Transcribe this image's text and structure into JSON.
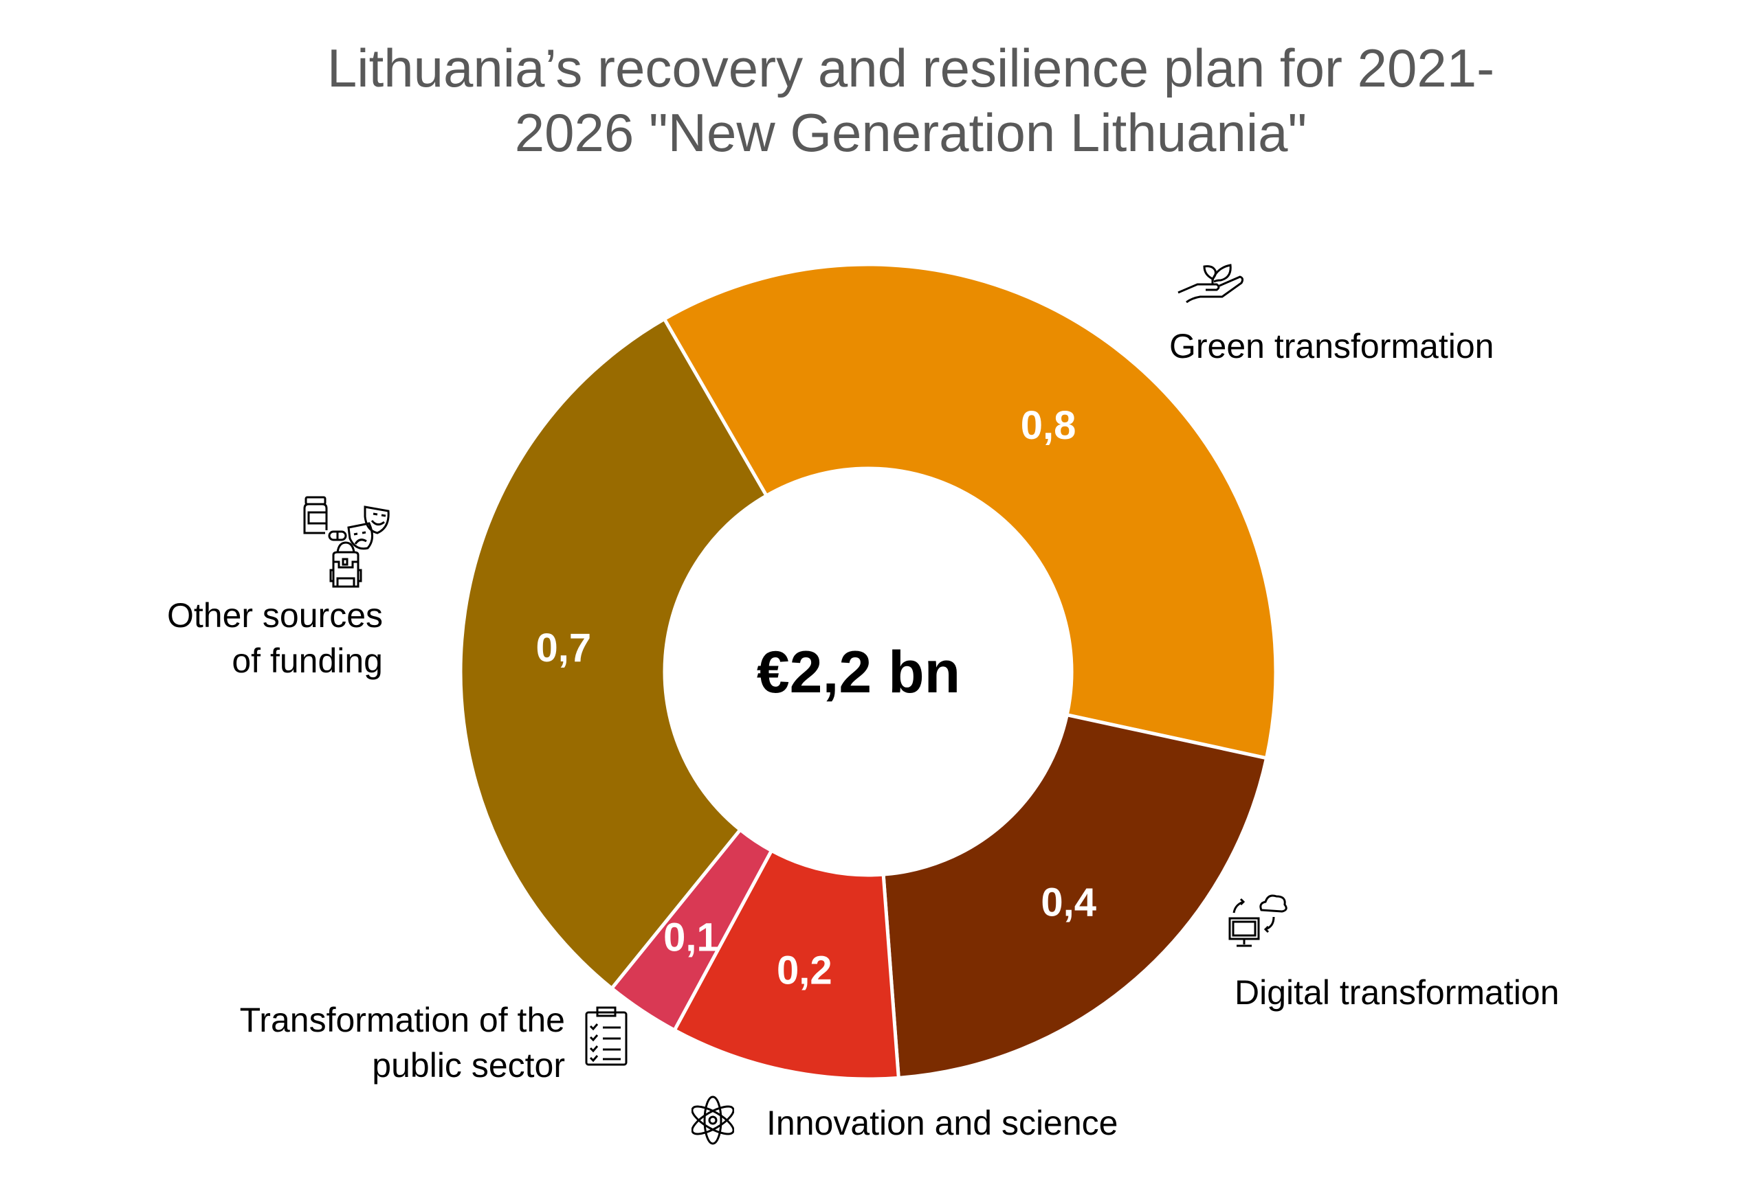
{
  "chart_data": {
    "type": "pie",
    "subtype": "donut",
    "title_lines": [
      "Lithuania’s recovery and resilience plan for 2021-",
      "2026 \"New Generation Lithuania\""
    ],
    "center_label": "€2,2 bn",
    "total": 2.2,
    "unit": "€ bn",
    "start_angle_deg": -30,
    "slices": [
      {
        "name": "Green transformation",
        "label_lines": [
          "Green transformation"
        ],
        "value": 0.81,
        "value_label": "0,8",
        "color": "#EA8C00",
        "icon": "hand-plant-icon"
      },
      {
        "name": "Digital transformation",
        "label_lines": [
          "Digital transformation"
        ],
        "value": 0.45,
        "value_label": "0,4",
        "color": "#7B2C00",
        "icon": "computer-cloud-icon"
      },
      {
        "name": "Innovation and science",
        "label_lines": [
          "Innovation and science"
        ],
        "value": 0.2,
        "value_label": "0,2",
        "color": "#E0301E",
        "icon": "atom-icon"
      },
      {
        "name": "Transformation of the public sector",
        "label_lines": [
          "Transformation of the",
          "public sector"
        ],
        "value": 0.065,
        "value_label": "0,1",
        "color": "#D93954",
        "icon": "clipboard-checklist-icon"
      },
      {
        "name": "Other sources of funding",
        "label_lines": [
          "Other sources",
          "of funding"
        ],
        "value": 0.68,
        "value_label": "0,7",
        "color": "#996B00",
        "icon": "medicine-theatre-backpack-icon"
      }
    ]
  }
}
